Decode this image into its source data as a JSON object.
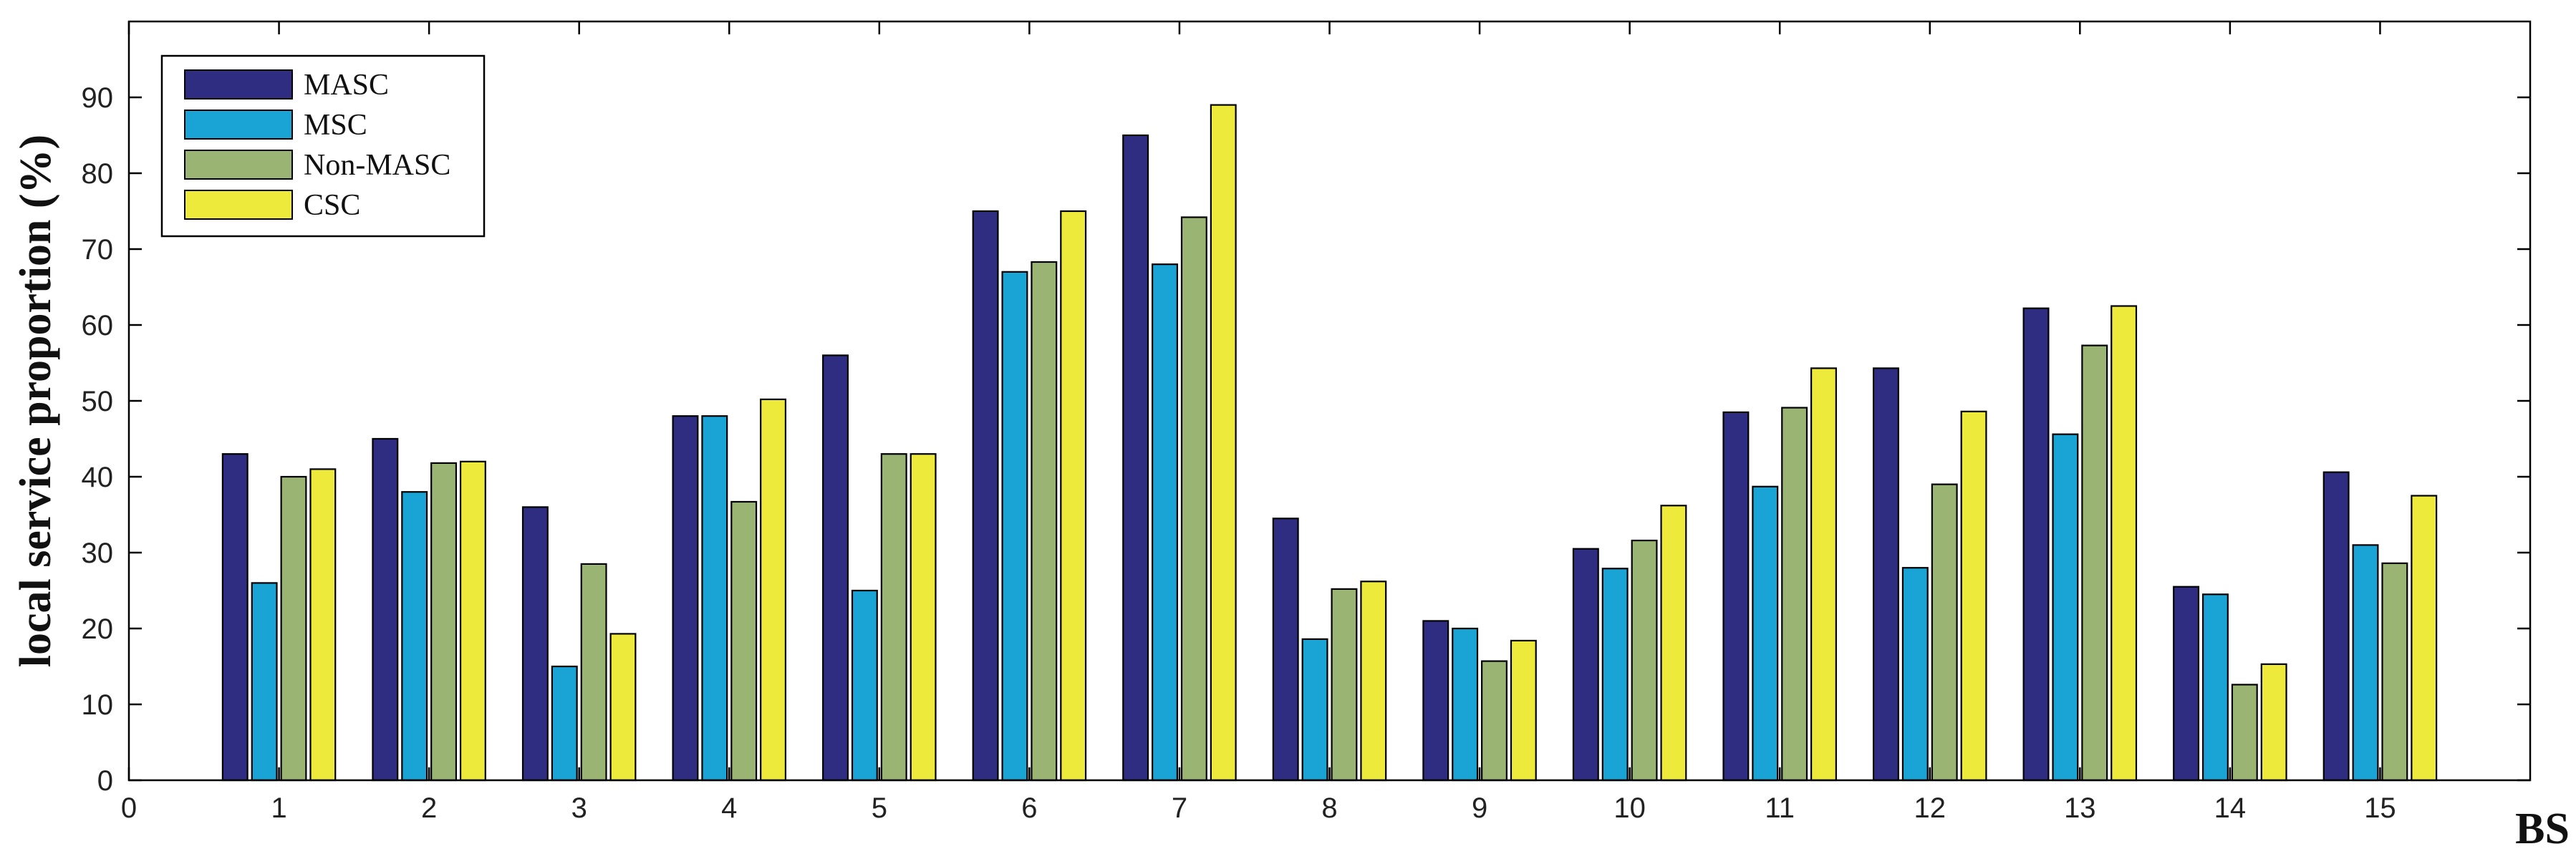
{
  "chart_data": {
    "type": "bar",
    "title": "",
    "xlabel": "BS",
    "ylabel": "local service proportion (%)",
    "x_ticks": [
      0,
      1,
      2,
      3,
      4,
      5,
      6,
      7,
      8,
      9,
      10,
      11,
      12,
      13,
      14,
      15
    ],
    "y_ticks": [
      0,
      10,
      20,
      30,
      40,
      50,
      60,
      70,
      80,
      90
    ],
    "categories": [
      "1",
      "2",
      "3",
      "4",
      "5",
      "6",
      "7",
      "8",
      "9",
      "10",
      "11",
      "12",
      "13",
      "14",
      "15"
    ],
    "xlim": [
      0,
      16
    ],
    "ylim": [
      0,
      100
    ],
    "grid": false,
    "legend_position": "top-left",
    "series": [
      {
        "name": "MASC",
        "color": "#2E2D82",
        "values": [
          43,
          45,
          36,
          48,
          56,
          75,
          85,
          34.5,
          21,
          30.5,
          48.5,
          54.3,
          62.2,
          25.5,
          40.6
        ]
      },
      {
        "name": "MSC",
        "color": "#1AA3D5",
        "values": [
          26,
          38,
          15,
          48,
          25,
          67,
          68,
          18.6,
          20,
          27.9,
          38.7,
          28,
          45.6,
          24.5,
          31
        ]
      },
      {
        "name": "Non-MASC",
        "color": "#9AB573",
        "values": [
          40,
          41.8,
          28.5,
          36.7,
          43,
          68.3,
          74.2,
          25.2,
          15.7,
          31.6,
          49.1,
          39,
          57.3,
          12.6,
          28.6
        ]
      },
      {
        "name": "CSC",
        "color": "#EEEA3C",
        "values": [
          41,
          42,
          19.3,
          50.2,
          43,
          75,
          89,
          26.2,
          18.4,
          36.2,
          54.3,
          48.6,
          62.5,
          15.3,
          37.5
        ]
      }
    ]
  }
}
